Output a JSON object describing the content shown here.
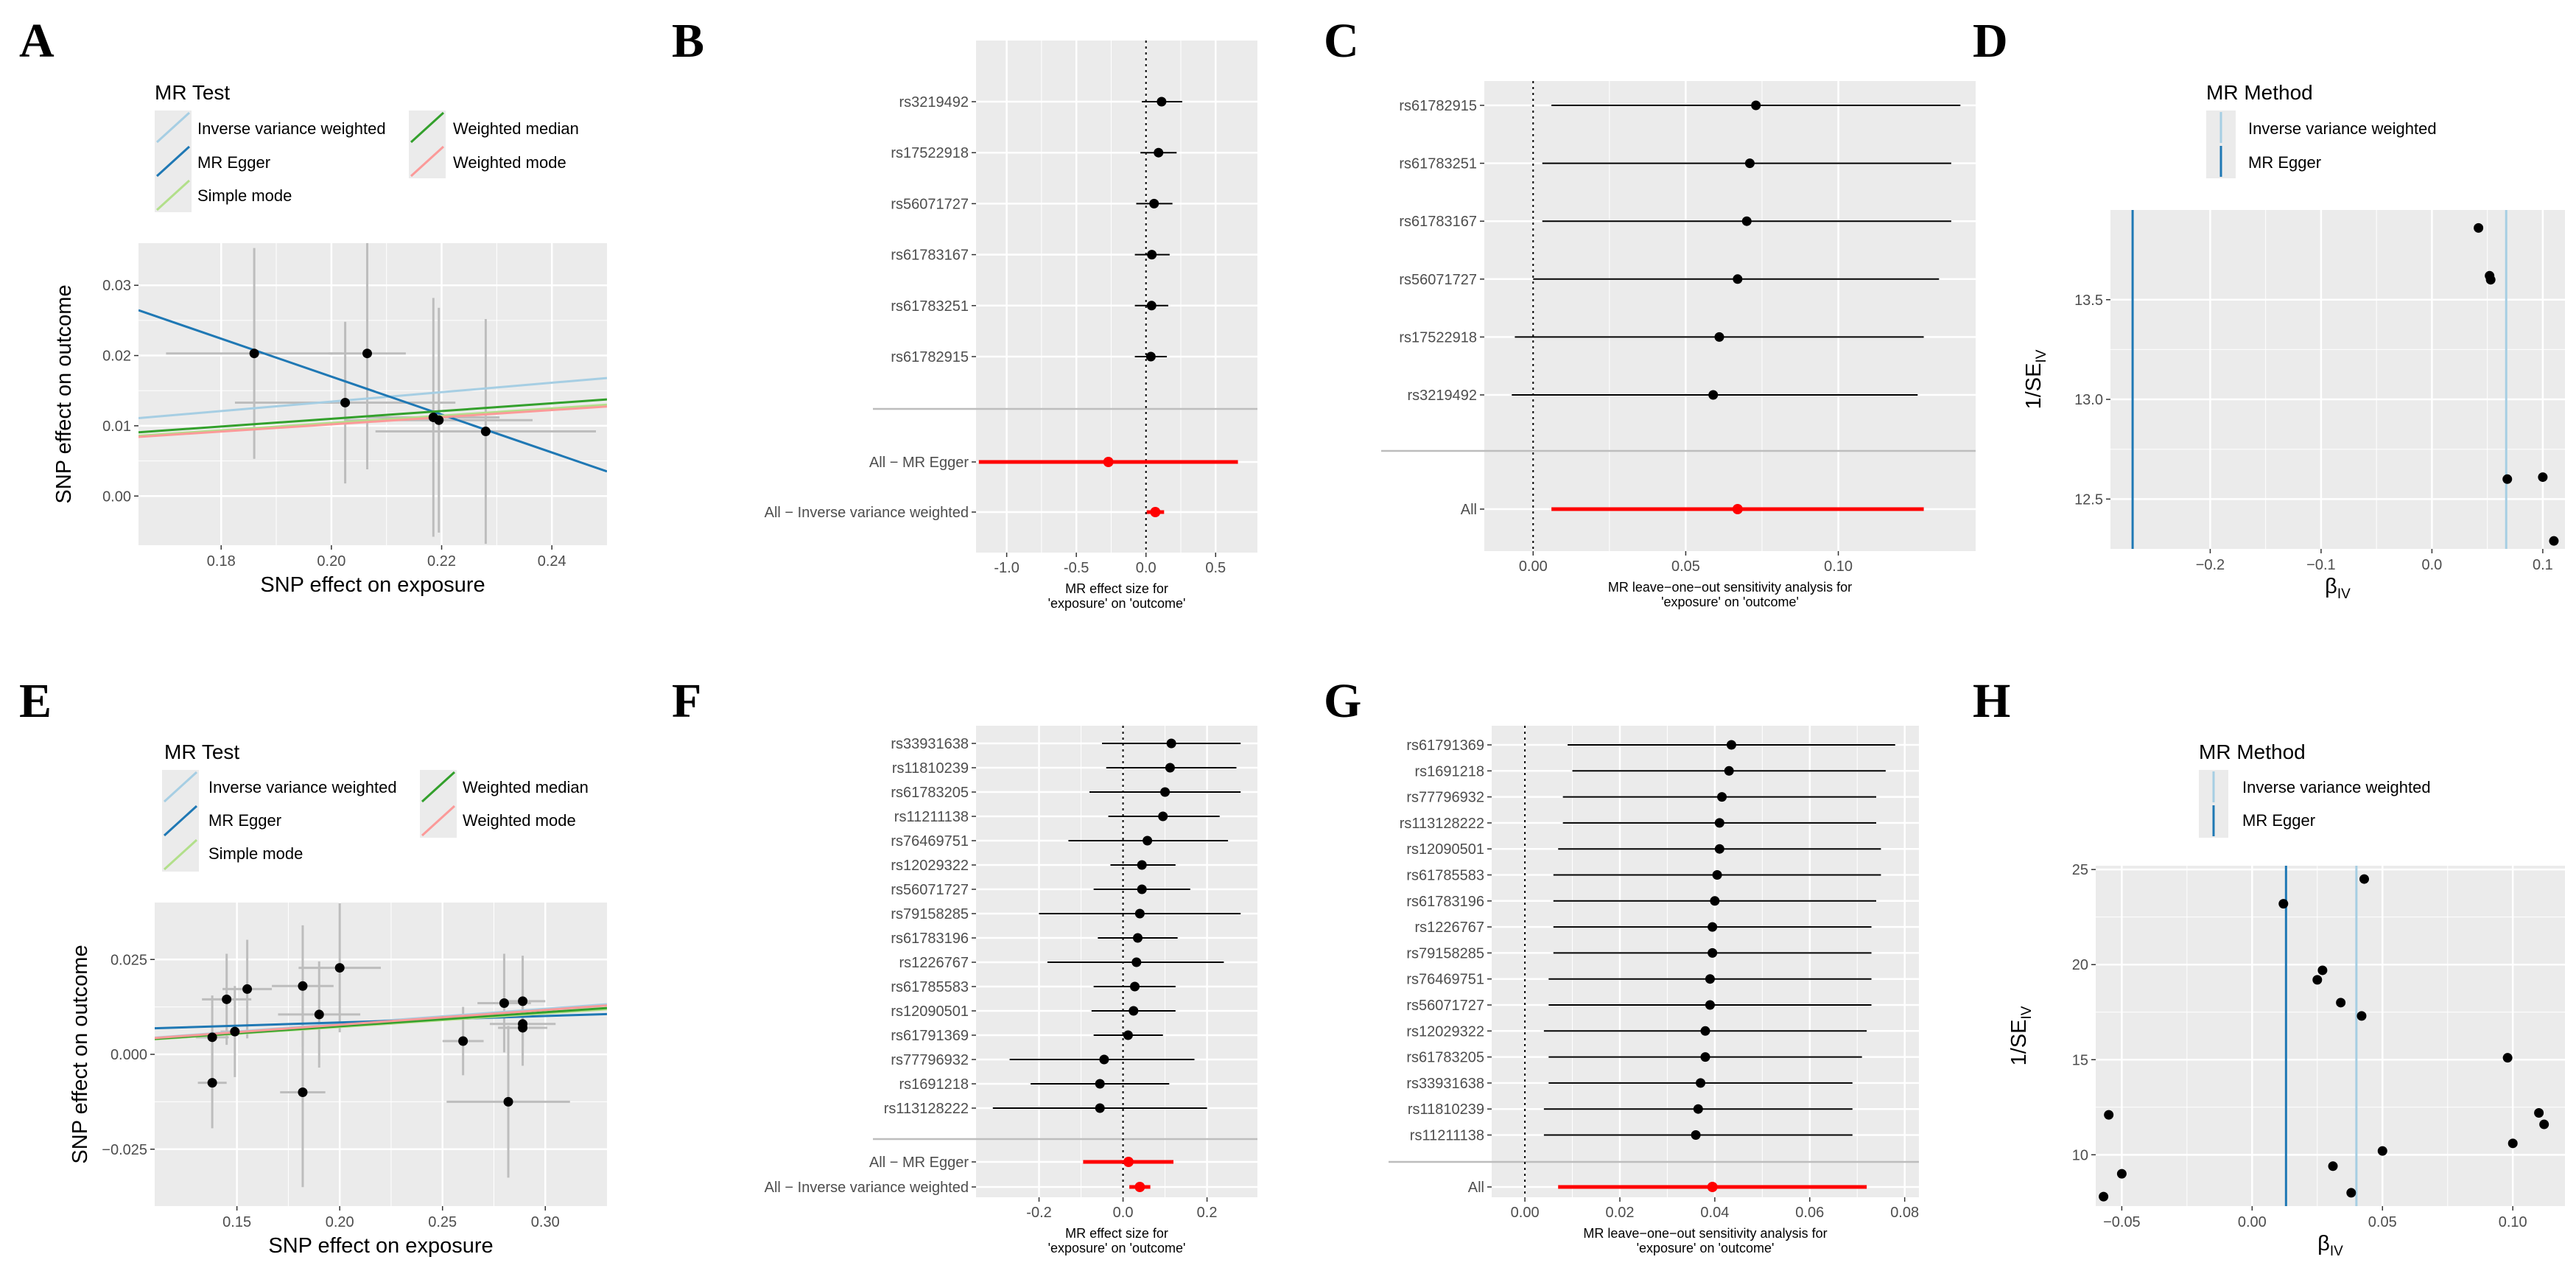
{
  "colors": {
    "ivw": "#a6cee3",
    "egger": "#1f78b4",
    "simple": "#b2df8a",
    "wmedian": "#33a02c",
    "wmode": "#fb9a99",
    "red": "#ff0000",
    "panel": "#ebebeb",
    "grid": "#ffffff"
  },
  "legend_mr_test": {
    "title": "MR Test",
    "items": [
      "Inverse variance weighted",
      "MR Egger",
      "Simple mode",
      "Weighted median",
      "Weighted mode"
    ]
  },
  "legend_mr_method": {
    "title": "MR Method",
    "items": [
      "Inverse variance weighted",
      "MR Egger"
    ]
  },
  "chart_data": [
    {
      "panel": "A",
      "type": "scatter",
      "xlabel": "SNP effect on exposure",
      "ylabel": "SNP effect on outcome",
      "xlim": [
        0.165,
        0.25
      ],
      "ylim": [
        -0.007,
        0.036
      ],
      "xticks": [
        "0.18",
        "0.20",
        "0.22",
        "0.24"
      ],
      "xtick_values": [
        0.18,
        0.2,
        0.22,
        0.24
      ],
      "yticks": [
        "0.00",
        "0.01",
        "0.02",
        "0.03"
      ],
      "ytick_values": [
        0.0,
        0.01,
        0.02,
        0.03
      ],
      "points": [
        {
          "x": 0.186,
          "y": 0.0203,
          "xe": 0.016,
          "ye": 0.015
        },
        {
          "x": 0.2025,
          "y": 0.0133,
          "xe": 0.02,
          "ye": 0.0115
        },
        {
          "x": 0.2065,
          "y": 0.0203,
          "xe": 0.007,
          "ye": 0.0165
        },
        {
          "x": 0.2185,
          "y": 0.0112,
          "xe": 0.012,
          "ye": 0.017
        },
        {
          "x": 0.2195,
          "y": 0.0108,
          "xe": 0.017,
          "ye": 0.016
        },
        {
          "x": 0.228,
          "y": 0.0092,
          "xe": 0.02,
          "ye": 0.016
        }
      ],
      "lines": [
        {
          "method": "ivw",
          "slope": 0.0672,
          "intercept": 0
        },
        {
          "method": "egger",
          "slope": -0.27,
          "intercept": 0.071
        },
        {
          "method": "simple",
          "slope": 0.052,
          "intercept": 0
        },
        {
          "method": "wmedian",
          "slope": 0.055,
          "intercept": 0
        },
        {
          "method": "wmode",
          "slope": 0.051,
          "intercept": 0
        }
      ]
    },
    {
      "panel": "B",
      "type": "forest",
      "xlabel": "MR effect size for\n'exposure' on 'outcome'",
      "xlim": [
        -1.22,
        0.8
      ],
      "xticks": [
        "-1.0",
        "-0.5",
        "0.0",
        "0.5"
      ],
      "xtick_values": [
        -1.0,
        -0.5,
        0.0,
        0.5
      ],
      "snps": [
        {
          "label": "rs3219492",
          "est": 0.112,
          "lo": -0.03,
          "hi": 0.26
        },
        {
          "label": "rs17522918",
          "est": 0.09,
          "lo": -0.04,
          "hi": 0.22
        },
        {
          "label": "rs56071727",
          "est": 0.058,
          "lo": -0.07,
          "hi": 0.19
        },
        {
          "label": "rs61783167",
          "est": 0.042,
          "lo": -0.08,
          "hi": 0.17
        },
        {
          "label": "rs61783251",
          "est": 0.04,
          "lo": -0.08,
          "hi": 0.16
        },
        {
          "label": "rs61782915",
          "est": 0.035,
          "lo": -0.08,
          "hi": 0.15
        }
      ],
      "summary": [
        {
          "label": "All − MR Egger",
          "est": -0.27,
          "lo": -1.2,
          "hi": 0.66
        },
        {
          "label": "All − Inverse variance weighted",
          "est": 0.067,
          "lo": 0.005,
          "hi": 0.13
        }
      ]
    },
    {
      "panel": "C",
      "type": "forest",
      "xlabel": "MR leave−one−out sensitivity analysis for\n'exposure' on 'outcome'",
      "xlim": [
        -0.016,
        0.145
      ],
      "xticks": [
        "0.00",
        "0.05",
        "0.10"
      ],
      "xtick_values": [
        0.0,
        0.05,
        0.1
      ],
      "snps": [
        {
          "label": "rs61782915",
          "est": 0.073,
          "lo": 0.006,
          "hi": 0.14
        },
        {
          "label": "rs61783251",
          "est": 0.071,
          "lo": 0.003,
          "hi": 0.137
        },
        {
          "label": "rs61783167",
          "est": 0.07,
          "lo": 0.003,
          "hi": 0.137
        },
        {
          "label": "rs56071727",
          "est": 0.067,
          "lo": 0.0,
          "hi": 0.133
        },
        {
          "label": "rs17522918",
          "est": 0.061,
          "lo": -0.006,
          "hi": 0.128
        },
        {
          "label": "rs3219492",
          "est": 0.059,
          "lo": -0.007,
          "hi": 0.126
        }
      ],
      "summary": [
        {
          "label": "All",
          "est": 0.067,
          "lo": 0.006,
          "hi": 0.128
        }
      ]
    },
    {
      "panel": "D",
      "type": "funnel",
      "xlabel": "βIV",
      "ylabel": "1/SEIV",
      "xlim": [
        -0.29,
        0.12
      ],
      "ylim": [
        12.25,
        13.95
      ],
      "xticks": [
        "−0.2",
        "−0.1",
        "0.0",
        "0.1"
      ],
      "xtick_values": [
        -0.2,
        -0.1,
        0.0,
        0.1
      ],
      "yticks": [
        "12.5",
        "13.0",
        "13.5"
      ],
      "ytick_values": [
        12.5,
        13.0,
        13.5
      ],
      "points": [
        {
          "x": 0.042,
          "y": 13.86
        },
        {
          "x": 0.052,
          "y": 13.62
        },
        {
          "x": 0.053,
          "y": 13.6
        },
        {
          "x": 0.068,
          "y": 12.6
        },
        {
          "x": 0.1,
          "y": 12.61
        },
        {
          "x": 0.11,
          "y": 12.29
        }
      ],
      "vlines": [
        {
          "method": "ivw",
          "x": 0.067
        },
        {
          "method": "egger",
          "x": -0.27
        }
      ]
    },
    {
      "panel": "E",
      "type": "scatter",
      "xlabel": "SNP effect on exposure",
      "ylabel": "SNP effect on outcome",
      "xlim": [
        0.11,
        0.33
      ],
      "ylim": [
        -0.04,
        0.04
      ],
      "xticks": [
        "0.15",
        "0.20",
        "0.25",
        "0.30"
      ],
      "xtick_values": [
        0.15,
        0.2,
        0.25,
        0.3
      ],
      "yticks": [
        "−0.025",
        "0.000",
        "0.025"
      ],
      "ytick_values": [
        -0.025,
        0.0,
        0.025
      ],
      "points": [
        {
          "x": 0.138,
          "y": 0.0045,
          "xe": 0.008,
          "ye": 0.011
        },
        {
          "x": 0.138,
          "y": -0.0075,
          "xe": 0.007,
          "ye": 0.012
        },
        {
          "x": 0.145,
          "y": 0.0145,
          "xe": 0.012,
          "ye": 0.012
        },
        {
          "x": 0.149,
          "y": 0.006,
          "xe": 0.007,
          "ye": 0.012
        },
        {
          "x": 0.155,
          "y": 0.0172,
          "xe": 0.012,
          "ye": 0.013
        },
        {
          "x": 0.182,
          "y": 0.018,
          "xe": 0.015,
          "ye": 0.016
        },
        {
          "x": 0.182,
          "y": -0.01,
          "xe": 0.011,
          "ye": 0.025
        },
        {
          "x": 0.19,
          "y": 0.0105,
          "xe": 0.02,
          "ye": 0.014
        },
        {
          "x": 0.2,
          "y": 0.0228,
          "xe": 0.02,
          "ye": 0.017
        },
        {
          "x": 0.26,
          "y": 0.0035,
          "xe": 0.01,
          "ye": 0.009
        },
        {
          "x": 0.28,
          "y": 0.0135,
          "xe": 0.013,
          "ye": 0.013
        },
        {
          "x": 0.282,
          "y": -0.0125,
          "xe": 0.03,
          "ye": 0.02
        },
        {
          "x": 0.289,
          "y": 0.014,
          "xe": 0.011,
          "ye": 0.012
        },
        {
          "x": 0.289,
          "y": 0.008,
          "xe": 0.016,
          "ye": 0.009
        },
        {
          "x": 0.289,
          "y": 0.007,
          "xe": 0.012,
          "ye": 0.01
        }
      ],
      "lines": [
        {
          "method": "ivw",
          "slope": 0.04,
          "intercept": 0
        },
        {
          "method": "egger",
          "slope": 0.017,
          "intercept": 0.005
        },
        {
          "method": "simple",
          "slope": 0.036,
          "intercept": 0
        },
        {
          "method": "wmedian",
          "slope": 0.037,
          "intercept": 0
        },
        {
          "method": "wmode",
          "slope": 0.039,
          "intercept": 0
        }
      ]
    },
    {
      "panel": "F",
      "type": "forest",
      "xlabel": "MR effect size for\n'exposure' on 'outcome'",
      "xlim": [
        -0.35,
        0.32
      ],
      "xticks": [
        "-0.2",
        "0.0",
        "0.2"
      ],
      "xtick_values": [
        -0.2,
        0.0,
        0.2
      ],
      "snps": [
        {
          "label": "rs33931638",
          "est": 0.115,
          "lo": -0.05,
          "hi": 0.28
        },
        {
          "label": "rs11810239",
          "est": 0.112,
          "lo": -0.04,
          "hi": 0.27
        },
        {
          "label": "rs61783205",
          "est": 0.1,
          "lo": -0.08,
          "hi": 0.28
        },
        {
          "label": "rs11211138",
          "est": 0.095,
          "lo": -0.035,
          "hi": 0.23
        },
        {
          "label": "rs76469751",
          "est": 0.058,
          "lo": -0.13,
          "hi": 0.25
        },
        {
          "label": "rs12029322",
          "est": 0.045,
          "lo": -0.03,
          "hi": 0.125
        },
        {
          "label": "rs56071727",
          "est": 0.045,
          "lo": -0.07,
          "hi": 0.16
        },
        {
          "label": "rs79158285",
          "est": 0.04,
          "lo": -0.2,
          "hi": 0.28
        },
        {
          "label": "rs61783196",
          "est": 0.035,
          "lo": -0.06,
          "hi": 0.13
        },
        {
          "label": "rs1226767",
          "est": 0.032,
          "lo": -0.18,
          "hi": 0.24
        },
        {
          "label": "rs61785583",
          "est": 0.028,
          "lo": -0.07,
          "hi": 0.125
        },
        {
          "label": "rs12090501",
          "est": 0.025,
          "lo": -0.075,
          "hi": 0.125
        },
        {
          "label": "rs61791369",
          "est": 0.012,
          "lo": -0.07,
          "hi": 0.095
        },
        {
          "label": "rs77796932",
          "est": -0.045,
          "lo": -0.27,
          "hi": 0.17
        },
        {
          "label": "rs1691218",
          "est": -0.055,
          "lo": -0.22,
          "hi": 0.11
        },
        {
          "label": "rs113128222",
          "est": -0.055,
          "lo": -0.31,
          "hi": 0.2
        }
      ],
      "summary": [
        {
          "label": "All − MR Egger",
          "est": 0.013,
          "lo": -0.095,
          "hi": 0.12
        },
        {
          "label": "All − Inverse variance weighted",
          "est": 0.04,
          "lo": 0.015,
          "hi": 0.065
        }
      ]
    },
    {
      "panel": "G",
      "type": "forest",
      "xlabel": "MR leave−one−out sensitivity analysis for\n'exposure' on 'outcome'",
      "xlim": [
        -0.007,
        0.083
      ],
      "xticks": [
        "0.00",
        "0.02",
        "0.04",
        "0.06",
        "0.08"
      ],
      "xtick_values": [
        0.0,
        0.02,
        0.04,
        0.06,
        0.08
      ],
      "snps": [
        {
          "label": "rs61791369",
          "est": 0.0435,
          "lo": 0.009,
          "hi": 0.078
        },
        {
          "label": "rs1691218",
          "est": 0.043,
          "lo": 0.01,
          "hi": 0.076
        },
        {
          "label": "rs77796932",
          "est": 0.0415,
          "lo": 0.008,
          "hi": 0.074
        },
        {
          "label": "rs113128222",
          "est": 0.041,
          "lo": 0.008,
          "hi": 0.074
        },
        {
          "label": "rs12090501",
          "est": 0.041,
          "lo": 0.007,
          "hi": 0.075
        },
        {
          "label": "rs61785583",
          "est": 0.0405,
          "lo": 0.006,
          "hi": 0.075
        },
        {
          "label": "rs61783196",
          "est": 0.04,
          "lo": 0.006,
          "hi": 0.074
        },
        {
          "label": "rs1226767",
          "est": 0.0395,
          "lo": 0.006,
          "hi": 0.073
        },
        {
          "label": "rs79158285",
          "est": 0.0395,
          "lo": 0.006,
          "hi": 0.073
        },
        {
          "label": "rs76469751",
          "est": 0.039,
          "lo": 0.005,
          "hi": 0.073
        },
        {
          "label": "rs56071727",
          "est": 0.039,
          "lo": 0.005,
          "hi": 0.073
        },
        {
          "label": "rs12029322",
          "est": 0.038,
          "lo": 0.004,
          "hi": 0.072
        },
        {
          "label": "rs61783205",
          "est": 0.038,
          "lo": 0.005,
          "hi": 0.071
        },
        {
          "label": "rs33931638",
          "est": 0.037,
          "lo": 0.005,
          "hi": 0.069
        },
        {
          "label": "rs11810239",
          "est": 0.0365,
          "lo": 0.004,
          "hi": 0.069
        },
        {
          "label": "rs11211138",
          "est": 0.036,
          "lo": 0.004,
          "hi": 0.069
        }
      ],
      "summary": [
        {
          "label": "All",
          "est": 0.0395,
          "lo": 0.007,
          "hi": 0.072
        }
      ]
    },
    {
      "panel": "H",
      "type": "funnel",
      "xlabel": "βIV",
      "ylabel": "1/SEIV",
      "xlim": [
        -0.06,
        0.12
      ],
      "ylim": [
        7.3,
        25.2
      ],
      "xticks": [
        "−0.05",
        "0.00",
        "0.05",
        "0.10"
      ],
      "xtick_values": [
        -0.05,
        0.0,
        0.05,
        0.1
      ],
      "yticks": [
        "10",
        "15",
        "20",
        "25"
      ],
      "ytick_values": [
        10,
        15,
        20,
        25
      ],
      "points": [
        {
          "x": -0.057,
          "y": 7.8
        },
        {
          "x": -0.055,
          "y": 12.1
        },
        {
          "x": -0.05,
          "y": 9.0
        },
        {
          "x": 0.012,
          "y": 23.2
        },
        {
          "x": 0.025,
          "y": 19.2
        },
        {
          "x": 0.027,
          "y": 19.7
        },
        {
          "x": 0.031,
          "y": 9.4
        },
        {
          "x": 0.034,
          "y": 18.0
        },
        {
          "x": 0.038,
          "y": 8.0
        },
        {
          "x": 0.042,
          "y": 17.3
        },
        {
          "x": 0.043,
          "y": 24.5
        },
        {
          "x": 0.05,
          "y": 10.2
        },
        {
          "x": 0.098,
          "y": 15.1
        },
        {
          "x": 0.1,
          "y": 10.6
        },
        {
          "x": 0.11,
          "y": 12.2
        },
        {
          "x": 0.112,
          "y": 11.6
        }
      ],
      "vlines": [
        {
          "method": "ivw",
          "x": 0.04
        },
        {
          "method": "egger",
          "x": 0.013
        }
      ]
    }
  ]
}
